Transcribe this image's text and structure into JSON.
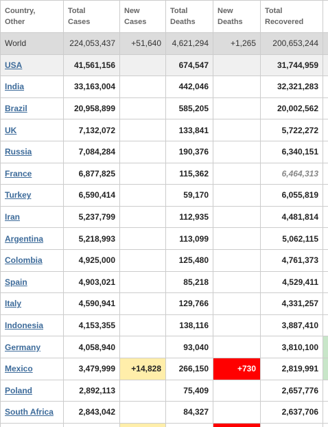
{
  "table": {
    "headers": [
      "Country, Other",
      "Total Cases",
      "New Cases",
      "Total Deaths",
      "New Deaths",
      "Total Recovered"
    ],
    "rows": [
      [
        "World",
        "224,053,437",
        "+51,640",
        "4,621,294",
        "+1,265",
        "200,653,244"
      ],
      [
        "USA",
        "41,561,156",
        null,
        "674,547",
        null,
        "31,744,959"
      ],
      [
        "India",
        "33,163,004",
        null,
        "442,046",
        null,
        "32,321,283"
      ],
      [
        "Brazil",
        "20,958,899",
        null,
        "585,205",
        null,
        "20,002,562"
      ],
      [
        "UK",
        "7,132,072",
        null,
        "133,841",
        null,
        "5,722,272"
      ],
      [
        "Russia",
        "7,084,284",
        null,
        "190,376",
        null,
        "6,340,151"
      ],
      [
        "France",
        "6,877,825",
        null,
        "115,362",
        null,
        "6,464,313"
      ],
      [
        "Turkey",
        "6,590,414",
        null,
        "59,170",
        null,
        "6,055,819"
      ],
      [
        "Iran",
        "5,237,799",
        null,
        "112,935",
        null,
        "4,481,814"
      ],
      [
        "Argentina",
        "5,218,993",
        null,
        "113,099",
        null,
        "5,062,115"
      ],
      [
        "Colombia",
        "4,925,000",
        null,
        "125,480",
        null,
        "4,761,373"
      ],
      [
        "Spain",
        "4,903,021",
        null,
        "85,218",
        null,
        "4,529,411"
      ],
      [
        "Italy",
        "4,590,941",
        null,
        "129,766",
        null,
        "4,331,257"
      ],
      [
        "Indonesia",
        "4,153,355",
        null,
        "138,116",
        null,
        "3,887,410"
      ],
      [
        "Germany",
        "4,058,940",
        null,
        "93,040",
        null,
        "3,810,100"
      ],
      [
        "Mexico",
        "3,479,999",
        "+14,828",
        "266,150",
        "+730",
        "2,819,991"
      ],
      [
        "Poland",
        "2,892,113",
        null,
        "75,409",
        null,
        "2,657,776"
      ],
      [
        "South Africa",
        "2,843,042",
        null,
        "84,327",
        null,
        "2,637,706"
      ]
    ]
  }
}
